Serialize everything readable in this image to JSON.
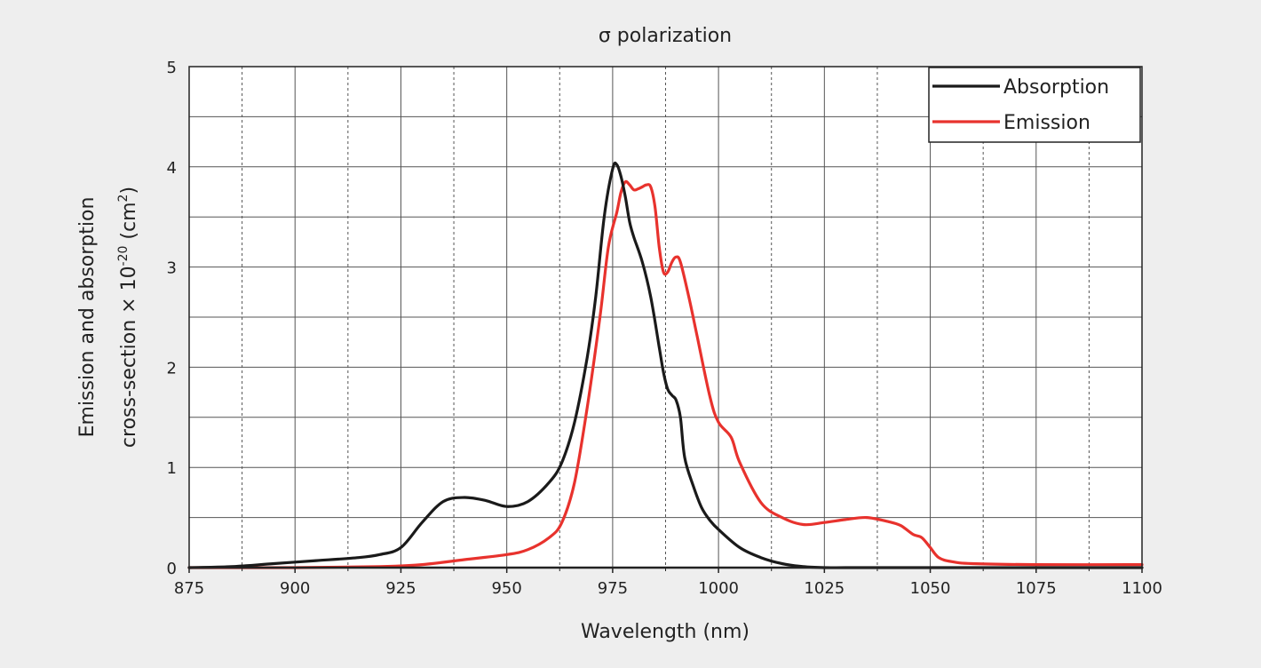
{
  "chart_data": {
    "type": "line",
    "title": "σ polarization",
    "xlabel": "Wavelength (nm)",
    "ylabel_line1": "Emission and absorption",
    "ylabel_line2_prefix": "cross-section × 10",
    "ylabel_line2_exponent": "-20",
    "ylabel_line2_unit_open": " (cm",
    "ylabel_line2_unit_exponent": "2",
    "ylabel_line2_unit_close": ")",
    "xlim": [
      875,
      1100
    ],
    "ylim": [
      0,
      5
    ],
    "x_major_ticks": [
      875,
      900,
      925,
      950,
      975,
      1000,
      1025,
      1050,
      1075,
      1100
    ],
    "x_tick_labels": [
      "875",
      "900",
      "925",
      "950",
      "975",
      "1000",
      "1025",
      "1050",
      "1075",
      "1100"
    ],
    "x_minor_grid": [
      887.5,
      912.5,
      937.5,
      962.5,
      987.5,
      1012.5,
      1037.5,
      1062.5,
      1087.5
    ],
    "y_major_ticks": [
      0,
      1,
      2,
      3,
      4,
      5
    ],
    "y_tick_labels": [
      "0",
      "1",
      "2",
      "3",
      "4",
      "5"
    ],
    "y_minor_grid": [
      0.5,
      1.5,
      2.5,
      3.5,
      4.5
    ],
    "grid": true,
    "legend_position": "top-right",
    "series": [
      {
        "name": "Absorption",
        "color": "#1a1a1a",
        "x": [
          875,
          885,
          895,
          905,
          915,
          920,
          925,
          930,
          935,
          940,
          945,
          950,
          955,
          960,
          963,
          966,
          969,
          971,
          973,
          975,
          976,
          977,
          978,
          979,
          980,
          982,
          984,
          986,
          987,
          988,
          989,
          990,
          991,
          992,
          994,
          996,
          998,
          1000,
          1005,
          1010,
          1015,
          1020,
          1025,
          1030,
          1040,
          1050,
          1060,
          1075,
          1100
        ],
        "y": [
          0.0,
          0.01,
          0.04,
          0.07,
          0.1,
          0.13,
          0.2,
          0.45,
          0.66,
          0.7,
          0.67,
          0.61,
          0.66,
          0.85,
          1.05,
          1.45,
          2.1,
          2.7,
          3.5,
          3.98,
          4.02,
          3.9,
          3.7,
          3.45,
          3.3,
          3.05,
          2.7,
          2.2,
          1.95,
          1.78,
          1.72,
          1.67,
          1.5,
          1.1,
          0.82,
          0.6,
          0.47,
          0.38,
          0.2,
          0.1,
          0.04,
          0.01,
          0.0,
          0.0,
          0.0,
          0.0,
          0.0,
          0.0,
          0.0
        ]
      },
      {
        "name": "Emission",
        "color": "#e8322d",
        "x": [
          875,
          900,
          920,
          930,
          940,
          950,
          955,
          960,
          963,
          966,
          969,
          972,
          974,
          976,
          977,
          978,
          979,
          980,
          981,
          982,
          983,
          984,
          985,
          986,
          987,
          988,
          989,
          990,
          991,
          993,
          995,
          998,
          1000,
          1003,
          1005,
          1010,
          1015,
          1020,
          1025,
          1030,
          1035,
          1040,
          1043,
          1046,
          1048,
          1050,
          1052,
          1055,
          1060,
          1075,
          1100
        ],
        "y": [
          0.0,
          0.0,
          0.01,
          0.03,
          0.08,
          0.13,
          0.18,
          0.3,
          0.45,
          0.85,
          1.6,
          2.5,
          3.2,
          3.55,
          3.75,
          3.85,
          3.82,
          3.77,
          3.78,
          3.8,
          3.82,
          3.8,
          3.6,
          3.2,
          2.95,
          2.95,
          3.05,
          3.1,
          3.05,
          2.7,
          2.3,
          1.7,
          1.45,
          1.3,
          1.05,
          0.65,
          0.5,
          0.43,
          0.45,
          0.48,
          0.5,
          0.46,
          0.42,
          0.33,
          0.3,
          0.2,
          0.1,
          0.06,
          0.04,
          0.03,
          0.03
        ]
      }
    ]
  }
}
